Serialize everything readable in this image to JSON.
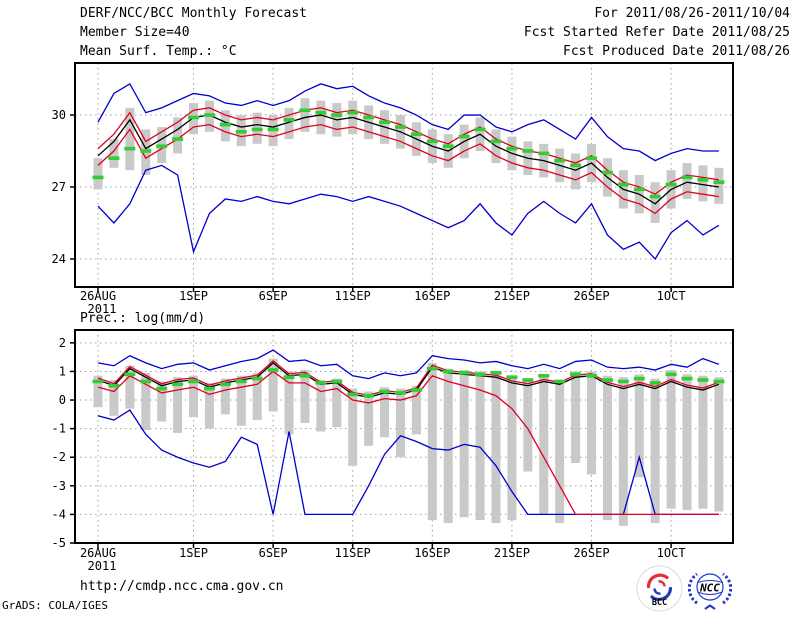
{
  "header": {
    "title": "DERF/NCC/BCC Monthly Forecast",
    "member_size": "Member Size=40",
    "for_period": "For 2011/08/26-2011/10/04",
    "refer_date": "Fcst Started Refer Date 2011/08/25",
    "produced_date": "Fcst Produced Date 2011/08/26"
  },
  "footer": {
    "url": "http://cmdp.ncc.cma.gov.cn",
    "grads_credit": "GrADS: COLA/IGES",
    "logos": [
      {
        "label": "BCC"
      },
      {
        "label": "NCC"
      }
    ]
  },
  "colors": {
    "mean_line": "#000000",
    "spread_line": "#e10022",
    "extreme_line": "#0000cc",
    "obs_dash": "#33cc33",
    "box_fill": "#c9c9c9",
    "grid": "#a0a0a0"
  },
  "chart_data": [
    {
      "id": "temperature",
      "type": "line",
      "title": "Mean Surf. Temp.: °C",
      "x_tick_labels": [
        "26AUG",
        "1SEP",
        "6SEP",
        "11SEP",
        "16SEP",
        "21SEP",
        "26SEP",
        "1OCT"
      ],
      "x_tick_days": [
        0,
        6,
        11,
        16,
        21,
        26,
        31,
        36
      ],
      "x_year": "2011",
      "n_days": 40,
      "ylim": [
        22.83,
        32.17
      ],
      "yticks": [
        24,
        27,
        30
      ],
      "grid": "dotted",
      "series": [
        {
          "name": "ensemble-max",
          "color_key": "extreme_line",
          "values": [
            29.7,
            30.9,
            31.3,
            30.1,
            30.3,
            30.6,
            30.9,
            30.8,
            30.5,
            30.4,
            30.6,
            30.4,
            30.6,
            31.0,
            31.3,
            31.1,
            31.2,
            30.8,
            30.5,
            30.3,
            30.0,
            29.6,
            29.4,
            30.0,
            30.0,
            29.5,
            29.3,
            29.6,
            29.8,
            29.4,
            29.0,
            29.9,
            29.1,
            28.6,
            28.5,
            28.1,
            28.4,
            28.6,
            28.5,
            28.5
          ]
        },
        {
          "name": "upper-spread",
          "color_key": "spread_line",
          "values": [
            28.6,
            29.2,
            30.1,
            28.9,
            29.3,
            29.7,
            30.2,
            30.3,
            30.0,
            29.8,
            29.9,
            29.8,
            30.0,
            30.2,
            30.3,
            30.1,
            30.2,
            30.0,
            29.8,
            29.6,
            29.3,
            29.0,
            28.8,
            29.2,
            29.5,
            29.0,
            28.7,
            28.5,
            28.4,
            28.2,
            28.0,
            28.3,
            27.7,
            27.2,
            27.0,
            26.7,
            27.2,
            27.5,
            27.4,
            27.3
          ]
        },
        {
          "name": "ensemble-mean",
          "color_key": "mean_line",
          "values": [
            28.3,
            28.9,
            29.8,
            28.6,
            29.0,
            29.4,
            29.9,
            30.0,
            29.7,
            29.5,
            29.6,
            29.5,
            29.7,
            29.9,
            30.0,
            29.8,
            29.9,
            29.7,
            29.5,
            29.3,
            29.0,
            28.7,
            28.5,
            28.9,
            29.2,
            28.7,
            28.4,
            28.2,
            28.1,
            27.9,
            27.7,
            28.0,
            27.4,
            26.9,
            26.7,
            26.3,
            26.9,
            27.2,
            27.1,
            27.0
          ]
        },
        {
          "name": "lower-spread",
          "color_key": "spread_line",
          "values": [
            27.9,
            28.5,
            29.4,
            28.2,
            28.6,
            29.0,
            29.5,
            29.6,
            29.3,
            29.1,
            29.2,
            29.1,
            29.3,
            29.5,
            29.6,
            29.4,
            29.5,
            29.3,
            29.1,
            28.9,
            28.6,
            28.3,
            28.1,
            28.5,
            28.8,
            28.3,
            28.0,
            27.8,
            27.7,
            27.5,
            27.3,
            27.6,
            27.0,
            26.5,
            26.3,
            25.9,
            26.5,
            26.8,
            26.7,
            26.6
          ]
        },
        {
          "name": "ensemble-min",
          "color_key": "extreme_line",
          "values": [
            26.2,
            25.5,
            26.3,
            27.7,
            27.9,
            27.5,
            24.3,
            25.9,
            26.5,
            26.4,
            26.6,
            26.4,
            26.3,
            26.5,
            26.7,
            26.6,
            26.4,
            26.6,
            26.4,
            26.2,
            25.9,
            25.6,
            25.3,
            25.6,
            26.3,
            25.5,
            25.0,
            25.9,
            26.4,
            25.9,
            25.5,
            26.3,
            25.0,
            24.4,
            24.7,
            24.0,
            25.1,
            25.6,
            25.0,
            25.4
          ]
        }
      ],
      "box": {
        "top": [
          28.2,
          29.0,
          30.3,
          29.4,
          29.5,
          29.9,
          30.5,
          30.6,
          30.2,
          30.0,
          30.1,
          30.0,
          30.3,
          30.7,
          30.6,
          30.5,
          30.6,
          30.4,
          30.2,
          30.0,
          29.7,
          29.4,
          29.2,
          29.6,
          29.9,
          29.4,
          29.1,
          28.9,
          28.8,
          28.6,
          28.4,
          28.8,
          28.2,
          27.7,
          27.5,
          27.2,
          27.7,
          28.0,
          27.9,
          27.8
        ],
        "bottom": [
          26.9,
          27.8,
          27.7,
          27.5,
          28.0,
          28.4,
          29.2,
          29.3,
          28.9,
          28.7,
          28.8,
          28.7,
          29.0,
          29.3,
          29.2,
          29.1,
          29.2,
          29.0,
          28.8,
          28.6,
          28.3,
          28.0,
          27.8,
          28.2,
          28.5,
          28.0,
          27.7,
          27.5,
          27.4,
          27.2,
          26.9,
          27.2,
          26.6,
          26.1,
          25.9,
          25.5,
          26.1,
          26.5,
          26.4,
          26.3
        ]
      },
      "green_dash": [
        27.4,
        28.2,
        28.6,
        28.5,
        28.7,
        29.0,
        29.9,
        30.0,
        29.6,
        29.3,
        29.4,
        29.4,
        29.8,
        30.2,
        30.1,
        30.0,
        30.1,
        29.9,
        29.7,
        29.5,
        29.2,
        28.9,
        28.7,
        29.1,
        29.4,
        28.9,
        28.6,
        28.5,
        28.4,
        28.1,
        27.9,
        28.2,
        27.6,
        27.1,
        26.9,
        26.6,
        27.1,
        27.4,
        27.3,
        27.2
      ]
    },
    {
      "id": "precipitation",
      "type": "line",
      "title": "Prec.: log(mm/d)",
      "x_tick_labels": [
        "26AUG",
        "1SEP",
        "6SEP",
        "11SEP",
        "16SEP",
        "21SEP",
        "26SEP",
        "1OCT"
      ],
      "x_tick_days": [
        0,
        6,
        11,
        16,
        21,
        26,
        31,
        36
      ],
      "x_year": "2011",
      "n_days": 40,
      "ylim": [
        -5,
        2.45
      ],
      "yticks": [
        2,
        1,
        0,
        -1,
        -2,
        -3,
        -4,
        -5
      ],
      "grid": "dotted",
      "series": [
        {
          "name": "ensemble-max",
          "color_key": "extreme_line",
          "values": [
            1.3,
            1.2,
            1.55,
            1.3,
            1.1,
            1.25,
            1.3,
            1.05,
            1.2,
            1.35,
            1.45,
            1.75,
            1.35,
            1.4,
            1.2,
            1.25,
            0.85,
            0.75,
            0.95,
            0.85,
            0.95,
            1.55,
            1.45,
            1.4,
            1.3,
            1.35,
            1.2,
            1.1,
            1.25,
            1.1,
            1.35,
            1.4,
            1.15,
            1.1,
            1.15,
            1.05,
            1.25,
            1.15,
            1.45,
            1.25
          ]
        },
        {
          "name": "upper-spread",
          "color_key": "spread_line",
          "values": [
            0.77,
            0.57,
            1.17,
            0.87,
            0.57,
            0.72,
            0.77,
            0.52,
            0.67,
            0.77,
            0.87,
            1.37,
            0.92,
            0.97,
            0.62,
            0.67,
            0.27,
            0.17,
            0.32,
            0.27,
            0.42,
            1.22,
            1.02,
            0.97,
            0.92,
            0.87,
            0.67,
            0.57,
            0.72,
            0.62,
            0.87,
            0.92,
            0.62,
            0.47,
            0.62,
            0.47,
            0.72,
            0.52,
            0.42,
            0.62
          ]
        },
        {
          "name": "ensemble-mean",
          "color_key": "mean_line",
          "values": [
            0.7,
            0.5,
            1.1,
            0.8,
            0.5,
            0.65,
            0.7,
            0.45,
            0.6,
            0.7,
            0.8,
            1.3,
            0.85,
            0.9,
            0.55,
            0.6,
            0.2,
            0.1,
            0.25,
            0.2,
            0.35,
            1.15,
            0.95,
            0.9,
            0.85,
            0.8,
            0.6,
            0.5,
            0.65,
            0.55,
            0.8,
            0.85,
            0.55,
            0.4,
            0.55,
            0.4,
            0.65,
            0.45,
            0.35,
            0.55
          ]
        },
        {
          "name": "lower-spread",
          "color_key": "spread_line",
          "values": [
            0.45,
            0.3,
            0.85,
            0.55,
            0.25,
            0.35,
            0.45,
            0.2,
            0.35,
            0.45,
            0.55,
            1.0,
            0.6,
            0.6,
            0.3,
            0.4,
            0.0,
            -0.1,
            0.05,
            0.0,
            0.15,
            0.85,
            0.65,
            0.5,
            0.35,
            0.15,
            -0.3,
            -1.0,
            -2.0,
            -3.0,
            -4.0,
            -4.0,
            -4.0,
            -4.0,
            -4.0,
            -4.0,
            -4.0,
            -4.0,
            -4.0,
            -4.0
          ]
        },
        {
          "name": "ensemble-min",
          "color_key": "extreme_line",
          "values": [
            -0.55,
            -0.7,
            -0.35,
            -1.2,
            -1.75,
            -2.0,
            -2.2,
            -2.35,
            -2.15,
            -1.3,
            -1.55,
            -4.0,
            -1.1,
            -4.0,
            -4.0,
            -4.0,
            -4.0,
            -3.0,
            -1.9,
            -1.25,
            -1.45,
            -1.7,
            -1.75,
            -1.55,
            -1.65,
            -2.3,
            -3.2,
            -4.0,
            -4.0,
            -4.0,
            -4.0,
            -4.0,
            -4.0,
            -4.0,
            -2.0,
            -4.0,
            -4.0,
            -4.0,
            -4.0,
            -4.0
          ]
        }
      ],
      "box": {
        "top": [
          0.85,
          0.7,
          1.2,
          0.95,
          0.65,
          0.8,
          0.85,
          0.6,
          0.75,
          0.85,
          0.95,
          1.45,
          1.0,
          1.05,
          0.7,
          0.75,
          0.4,
          0.3,
          0.45,
          0.4,
          0.5,
          1.3,
          1.1,
          1.05,
          1.0,
          0.95,
          0.8,
          0.7,
          0.85,
          0.7,
          1.0,
          1.0,
          0.85,
          0.8,
          0.9,
          0.75,
          1.05,
          0.9,
          0.85,
          0.8
        ],
        "bottom": [
          -0.25,
          -0.55,
          -0.3,
          -1.05,
          -0.75,
          -1.15,
          -0.6,
          -1.0,
          -0.5,
          -0.9,
          -0.7,
          -0.4,
          -1.2,
          -0.8,
          -1.1,
          -0.95,
          -2.3,
          -1.6,
          -1.3,
          -2.0,
          -1.2,
          -4.2,
          -4.3,
          -4.1,
          -4.2,
          -4.3,
          -4.2,
          -2.5,
          -4.0,
          -4.3,
          -2.2,
          -2.6,
          -4.2,
          -4.4,
          -2.7,
          -4.3,
          -3.8,
          -3.85,
          -3.8,
          -3.9
        ]
      },
      "green_dash": [
        0.65,
        0.5,
        0.9,
        0.65,
        0.4,
        0.55,
        0.65,
        0.4,
        0.55,
        0.65,
        0.75,
        1.05,
        0.8,
        0.85,
        0.6,
        0.65,
        0.2,
        0.15,
        0.3,
        0.25,
        0.35,
        1.1,
        1.0,
        0.95,
        0.9,
        0.95,
        0.8,
        0.7,
        0.85,
        0.65,
        0.9,
        0.85,
        0.7,
        0.65,
        0.75,
        0.6,
        0.9,
        0.75,
        0.7,
        0.65
      ]
    }
  ]
}
